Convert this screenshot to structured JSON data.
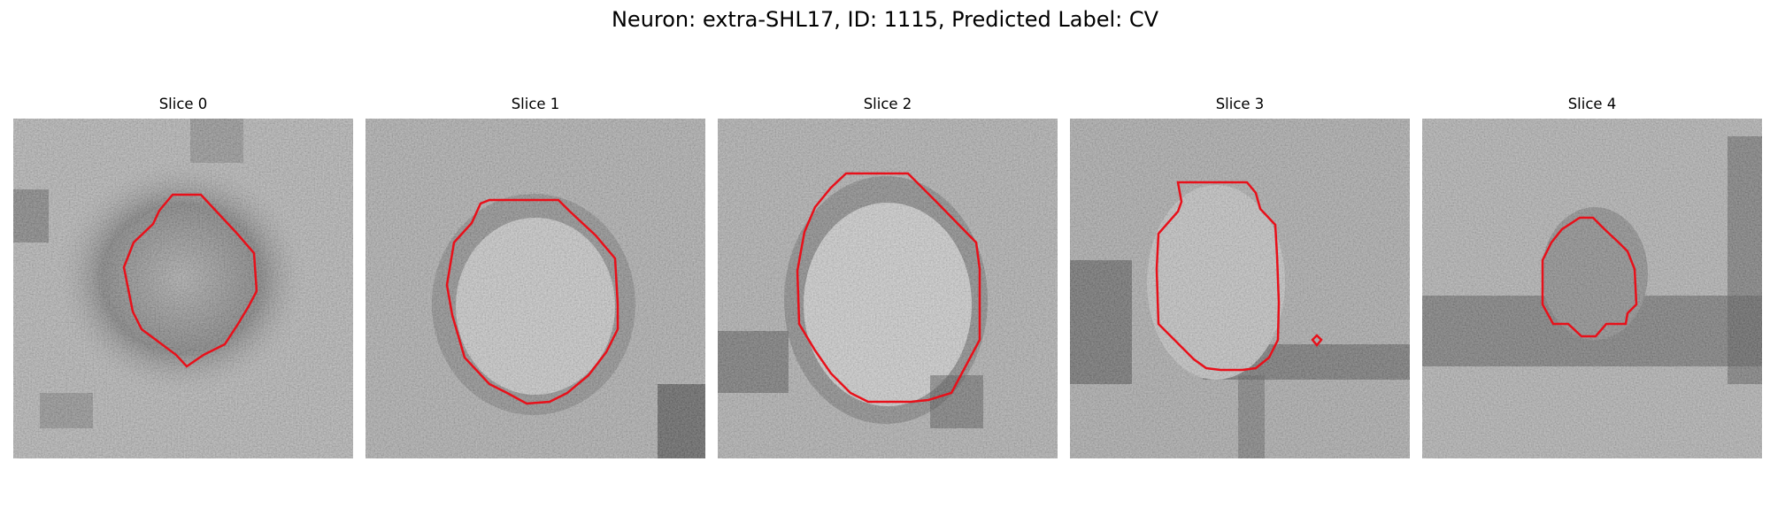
{
  "figure": {
    "title": "Neuron: extra-SHL17, ID: 1115, Predicted Label: CV",
    "contour_color": "#e8101a",
    "panels": [
      {
        "title": "Slice 0",
        "texture": "dark ring around a mottled center, dark speckles at lower left"
      },
      {
        "title": "Slice 1",
        "texture": "light circular body bordered by dark membrane, dark corner at lower right"
      },
      {
        "title": "Slice 2",
        "texture": "large light circular body with dark membrane arcs"
      },
      {
        "title": "Slice 3",
        "texture": "light oval body, dark bands on left and bottom, small red marker at lower right"
      },
      {
        "title": "Slice 4",
        "texture": "small gray body, dark horizontal band below, dark edge at right"
      }
    ]
  }
}
